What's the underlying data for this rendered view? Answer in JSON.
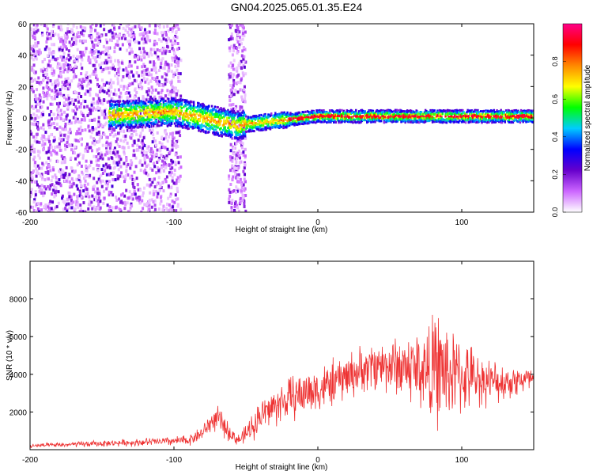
{
  "title": "GN04.2025.065.01.35.E24",
  "chart_data": [
    {
      "type": "heatmap",
      "title": "GN04.2025.065.01.35.E24",
      "xlabel": "Height of straight line (km)",
      "ylabel": "Frequency (Hz)",
      "xlim": [
        -200,
        150
      ],
      "ylim": [
        -60,
        60
      ],
      "xticks": [
        -200,
        -100,
        0,
        100
      ],
      "yticks": [
        -60,
        -40,
        -20,
        0,
        20,
        40,
        60
      ],
      "colorbar": {
        "label": "Normalized spectral amplitude",
        "range": [
          0,
          1
        ],
        "ticks": [
          0.0,
          0.2,
          0.4,
          0.6,
          0.8
        ],
        "colors": [
          "#ffffff",
          "#cc66ff",
          "#6600cc",
          "#0000ff",
          "#00ccff",
          "#00ff00",
          "#ffff00",
          "#ff8800",
          "#ff0000",
          "#ff0088"
        ]
      },
      "ridge": {
        "x": [
          -140,
          -120,
          -100,
          -90,
          -80,
          -70,
          -60,
          -55,
          -50,
          -40,
          -30,
          -20,
          -10,
          0,
          20,
          40,
          60,
          80,
          100,
          120,
          150
        ],
        "freq": [
          2,
          3,
          4,
          2,
          0,
          -2,
          -4,
          -5,
          -4,
          -3,
          -2,
          -1,
          0,
          1,
          1,
          1,
          1,
          1,
          1,
          1,
          1
        ]
      },
      "grid": false,
      "legend": "colorbar-right"
    },
    {
      "type": "line",
      "xlabel": "Height of straight line (km)",
      "ylabel": "SNR (10 * v/v)",
      "xlim": [
        -200,
        150
      ],
      "ylim": [
        0,
        10000
      ],
      "xticks": [
        -200,
        -100,
        0,
        100
      ],
      "yticks": [
        2000,
        4000,
        6000,
        8000
      ],
      "color": "#ee3333",
      "series": [
        {
          "x": [
            -200,
            -180,
            -160,
            -140,
            -120,
            -100,
            -90,
            -80,
            -75,
            -70,
            -65,
            -60,
            -55,
            -50,
            -45,
            -40,
            -30,
            -20,
            -10,
            0,
            10,
            20,
            30,
            40,
            50,
            60,
            70,
            80,
            85,
            90,
            100,
            110,
            120,
            130,
            140,
            150
          ],
          "y": [
            200,
            250,
            300,
            350,
            400,
            450,
            500,
            900,
            1400,
            1700,
            1200,
            800,
            500,
            800,
            1300,
            1800,
            2300,
            2700,
            3000,
            3200,
            3500,
            3900,
            4200,
            4500,
            4500,
            4400,
            4300,
            4200,
            4300,
            4000,
            3900,
            3800,
            3600,
            3600,
            3700,
            3700
          ],
          "spread": [
            150,
            150,
            200,
            200,
            250,
            300,
            350,
            500,
            700,
            800,
            700,
            500,
            400,
            600,
            900,
            1100,
            1300,
            1400,
            1500,
            1500,
            1500,
            1500,
            1500,
            1600,
            1800,
            2200,
            2600,
            3400,
            3800,
            3300,
            2400,
            1800,
            1400,
            1200,
            1000,
            900
          ]
        }
      ],
      "grid": false
    }
  ]
}
